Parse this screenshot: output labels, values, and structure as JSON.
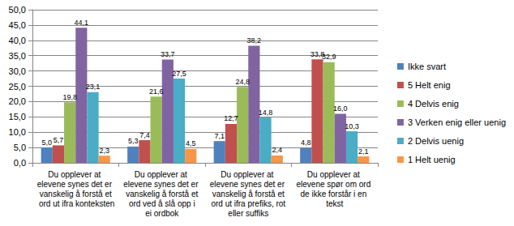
{
  "chart_data": {
    "type": "bar",
    "categories": [
      "Du opplever at elevene synes det er vanskelig å forstå et ord ut ifra konteksten",
      "Du opplever at elevene synes det er vanskelig å forstå et ord ved å slå opp i ei ordbok",
      "Du opplever at elevene synes det er vanskelig å forstå et ord ut ifra prefiks, rot eller suffiks",
      "Du opplever at elevene spør om ord de ikke forstår i en tekst"
    ],
    "series": [
      {
        "name": "Ikke svart",
        "color": "#4f81bd",
        "values": [
          5.0,
          5.3,
          7.1,
          4.8
        ],
        "value_labels": [
          "5,0",
          "5,3",
          "7,1",
          "4,8"
        ]
      },
      {
        "name": "5 Helt enig",
        "color": "#c0504d",
        "values": [
          5.7,
          7.4,
          12.7,
          33.8
        ],
        "value_labels": [
          "5,7",
          "7,4",
          "12,7",
          "33,8"
        ]
      },
      {
        "name": "4 Delvis enig",
        "color": "#9bbb59",
        "values": [
          19.8,
          21.6,
          24.8,
          32.9
        ],
        "value_labels": [
          "19,8",
          "21,6",
          "24,8",
          "32,9"
        ]
      },
      {
        "name": "3 Verken enig eller uenig",
        "color": "#8064a2",
        "values": [
          44.1,
          33.7,
          38.2,
          16.0
        ],
        "value_labels": [
          "44,1",
          "33,7",
          "38,2",
          "16,0"
        ]
      },
      {
        "name": "2 Delvis uenig",
        "color": "#4bacc6",
        "values": [
          23.1,
          27.5,
          14.8,
          10.3
        ],
        "value_labels": [
          "23,1",
          "27,5",
          "14,8",
          "10,3"
        ]
      },
      {
        "name": "1 Helt uenig",
        "color": "#f79646",
        "values": [
          2.3,
          4.5,
          2.4,
          2.1
        ],
        "value_labels": [
          "2,3",
          "4,5",
          "2,4",
          "2,1"
        ]
      }
    ],
    "ylim": [
      0,
      50
    ],
    "yticks": [
      {
        "value": 0,
        "label": "0,0"
      },
      {
        "value": 5,
        "label": "5,0"
      },
      {
        "value": 10,
        "label": "10,0"
      },
      {
        "value": 15,
        "label": "15,0"
      },
      {
        "value": 20,
        "label": "20,0"
      },
      {
        "value": 25,
        "label": "25,0"
      },
      {
        "value": 30,
        "label": "30,0"
      },
      {
        "value": 35,
        "label": "35,0"
      },
      {
        "value": 40,
        "label": "40,0"
      },
      {
        "value": 45,
        "label": "45,0"
      },
      {
        "value": 50,
        "label": "50,0"
      }
    ],
    "grid": true,
    "legend": "right",
    "data_labels": true
  }
}
